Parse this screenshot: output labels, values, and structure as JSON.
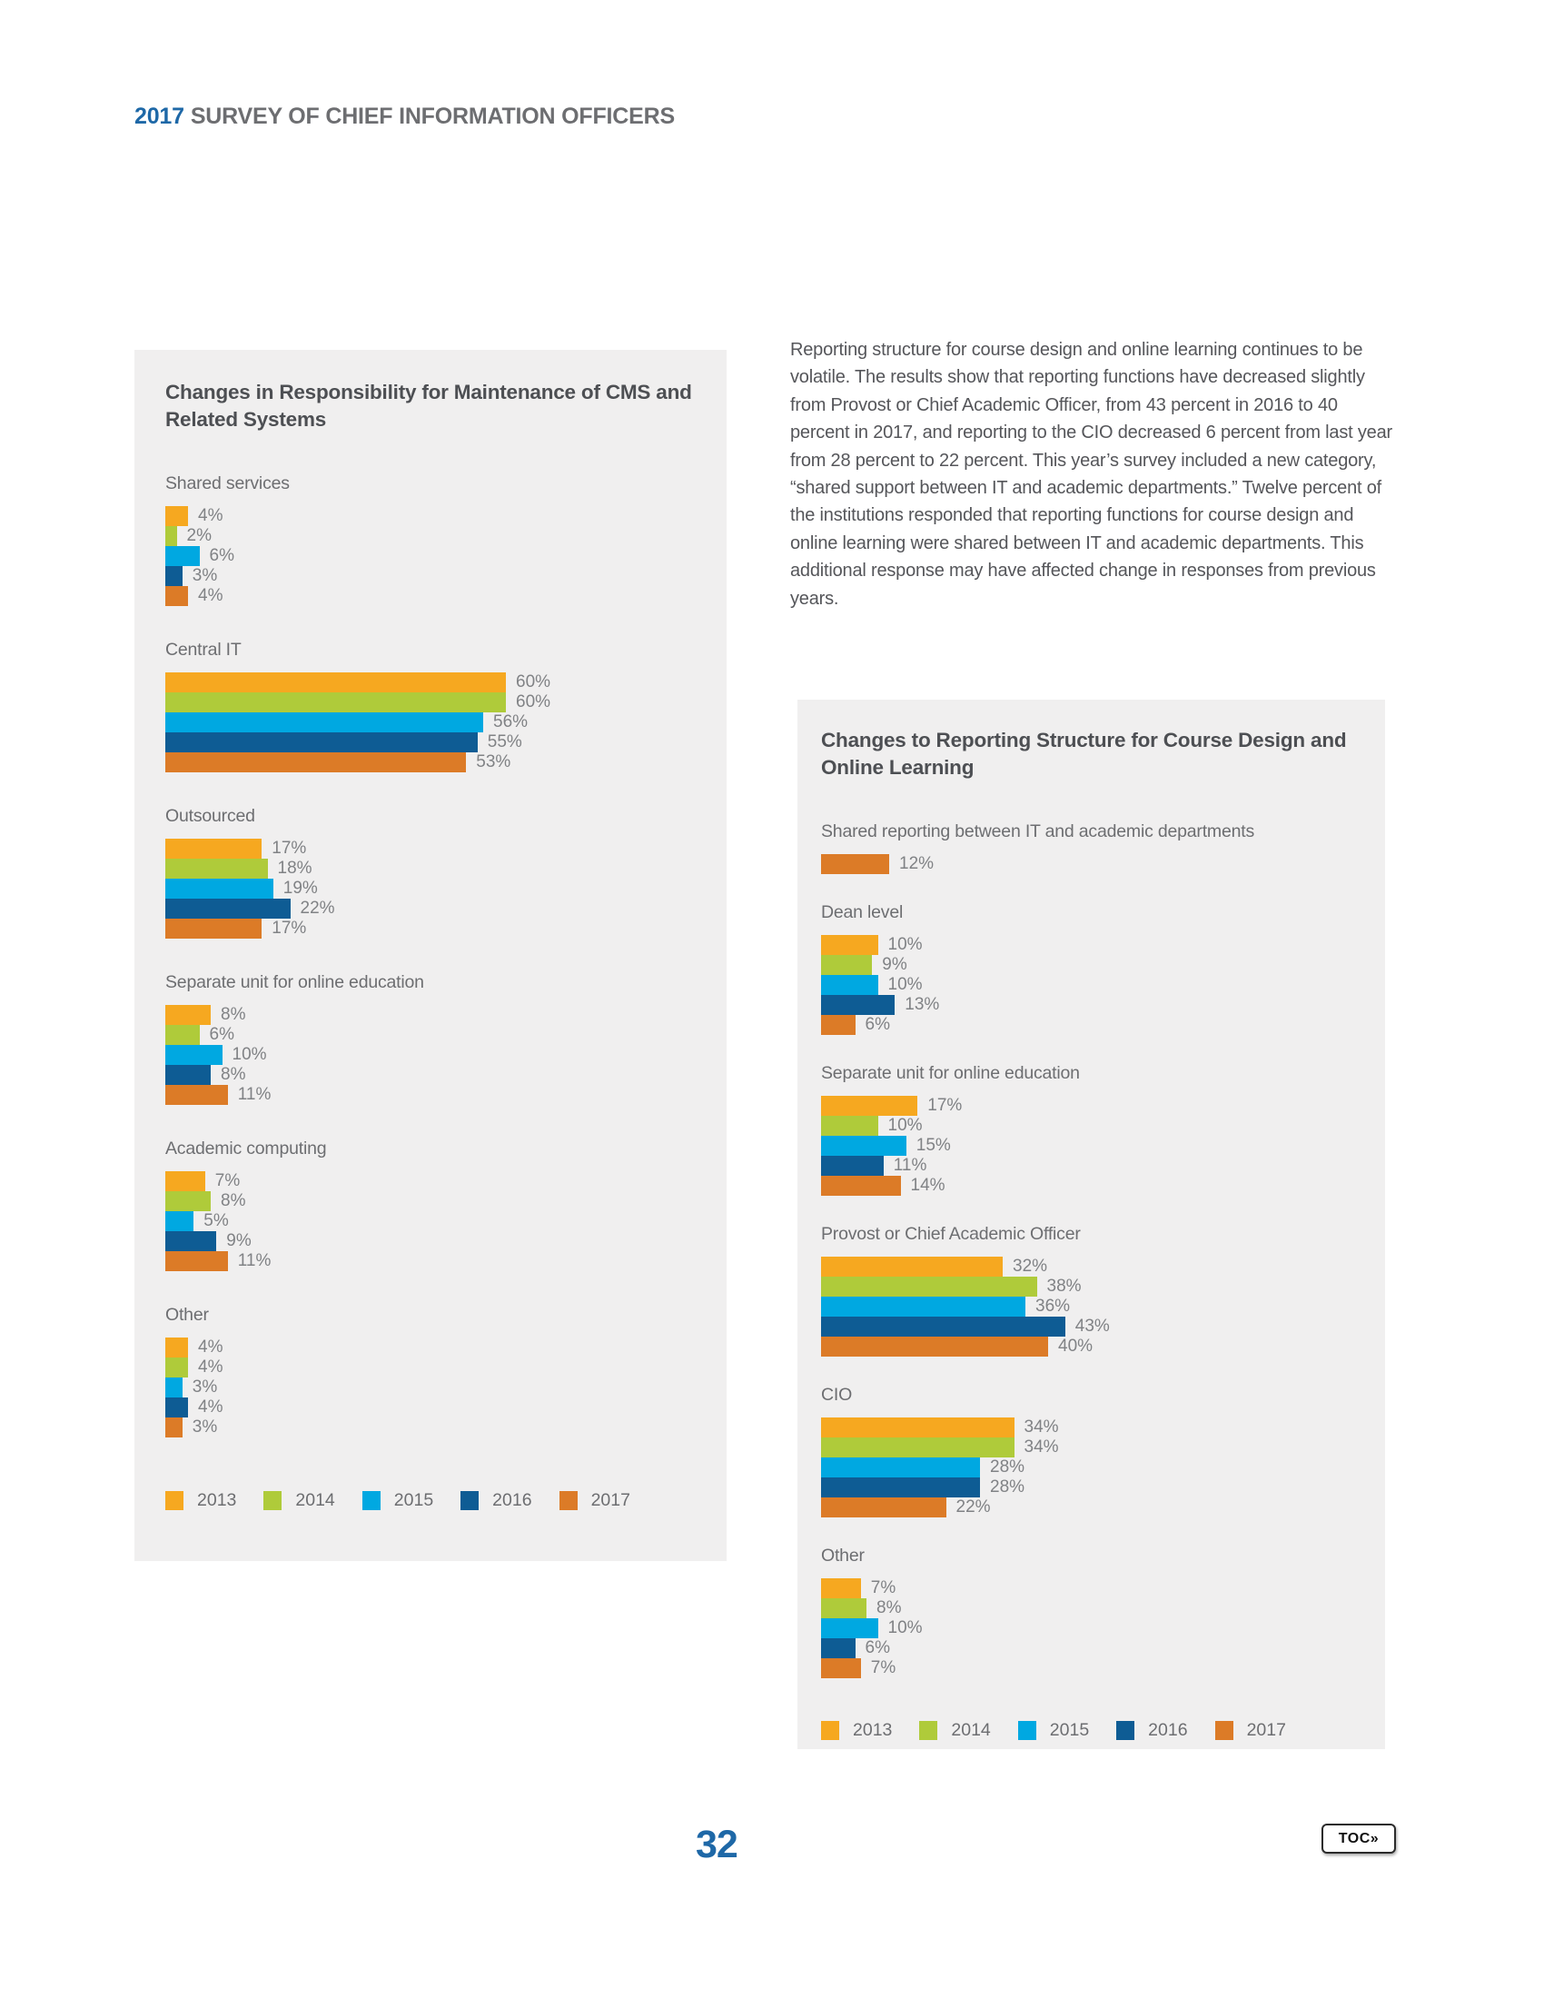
{
  "page": {
    "header": {
      "year": "2017",
      "title": "SURVEY OF CHIEF INFORMATION OFFICERS"
    },
    "page_number": "32",
    "toc_button_label": "TOC»"
  },
  "paragraph": "Reporting structure for course design and online learning continues to be volatile. The results show that reporting functions have decreased slightly from Provost or Chief Academic Officer, from 43 percent in 2016 to 40 percent in 2017, and reporting to the CIO decreased 6 percent from last year from 28 percent to 22 percent. This year’s survey included a new category, “shared support between IT and academic departments.” Twelve percent of the institutions responded that reporting functions for course design and online learning were shared between IT and academic departments. This additional response may have affected change in responses from previous years.",
  "colors": {
    "years": {
      "2013": "#F6A820",
      "2014": "#AFCB3A",
      "2015": "#00A8E1",
      "2016": "#0E5C94",
      "2017": "#DC7B27"
    },
    "accent_blue": "#1E68A7",
    "box_background": "#F0EFEF",
    "title_text": "#4D4F53",
    "label_text": "#6D6E71",
    "value_text": "#808285"
  },
  "chart_data": [
    {
      "type": "bar",
      "orientation": "horizontal",
      "title": "Changes in Responsibility for Maintenance of CMS and Related Systems",
      "unit": "%",
      "value_axis_range": [
        0,
        60
      ],
      "grid": false,
      "legend_position": "bottom",
      "series_names": [
        "2013",
        "2014",
        "2015",
        "2016",
        "2017"
      ],
      "categories": [
        {
          "label": "Shared services",
          "values": [
            4,
            2,
            6,
            3,
            4
          ]
        },
        {
          "label": "Central IT",
          "values": [
            60,
            60,
            56,
            55,
            53
          ]
        },
        {
          "label": "Outsourced",
          "values": [
            17,
            18,
            19,
            22,
            17
          ]
        },
        {
          "label": "Separate unit for online education",
          "values": [
            8,
            6,
            10,
            8,
            11
          ]
        },
        {
          "label": "Academic computing",
          "values": [
            7,
            8,
            5,
            9,
            11
          ]
        },
        {
          "label": "Other",
          "values": [
            4,
            4,
            3,
            4,
            3
          ]
        }
      ],
      "legend": [
        "2013",
        "2014",
        "2015",
        "2016",
        "2017"
      ]
    },
    {
      "type": "bar",
      "orientation": "horizontal",
      "title": "Changes to Reporting Structure for Course Design and Online Learning",
      "unit": "%",
      "value_axis_range": [
        0,
        43
      ],
      "grid": false,
      "legend_position": "bottom",
      "series_names": [
        "2013",
        "2014",
        "2015",
        "2016",
        "2017"
      ],
      "categories": [
        {
          "label": "Shared reporting between IT and academic departments",
          "years": [
            "2017"
          ],
          "values": [
            12
          ]
        },
        {
          "label": "Dean level",
          "values": [
            10,
            9,
            10,
            13,
            6
          ]
        },
        {
          "label": "Separate unit for online education",
          "values": [
            17,
            10,
            15,
            11,
            14
          ]
        },
        {
          "label": "Provost or Chief Academic Officer",
          "values": [
            32,
            38,
            36,
            43,
            40
          ]
        },
        {
          "label": "CIO",
          "values": [
            34,
            34,
            28,
            28,
            22
          ]
        },
        {
          "label": "Other",
          "values": [
            7,
            8,
            10,
            6,
            7
          ]
        }
      ],
      "legend": [
        "2013",
        "2014",
        "2015",
        "2016",
        "2017"
      ]
    }
  ]
}
